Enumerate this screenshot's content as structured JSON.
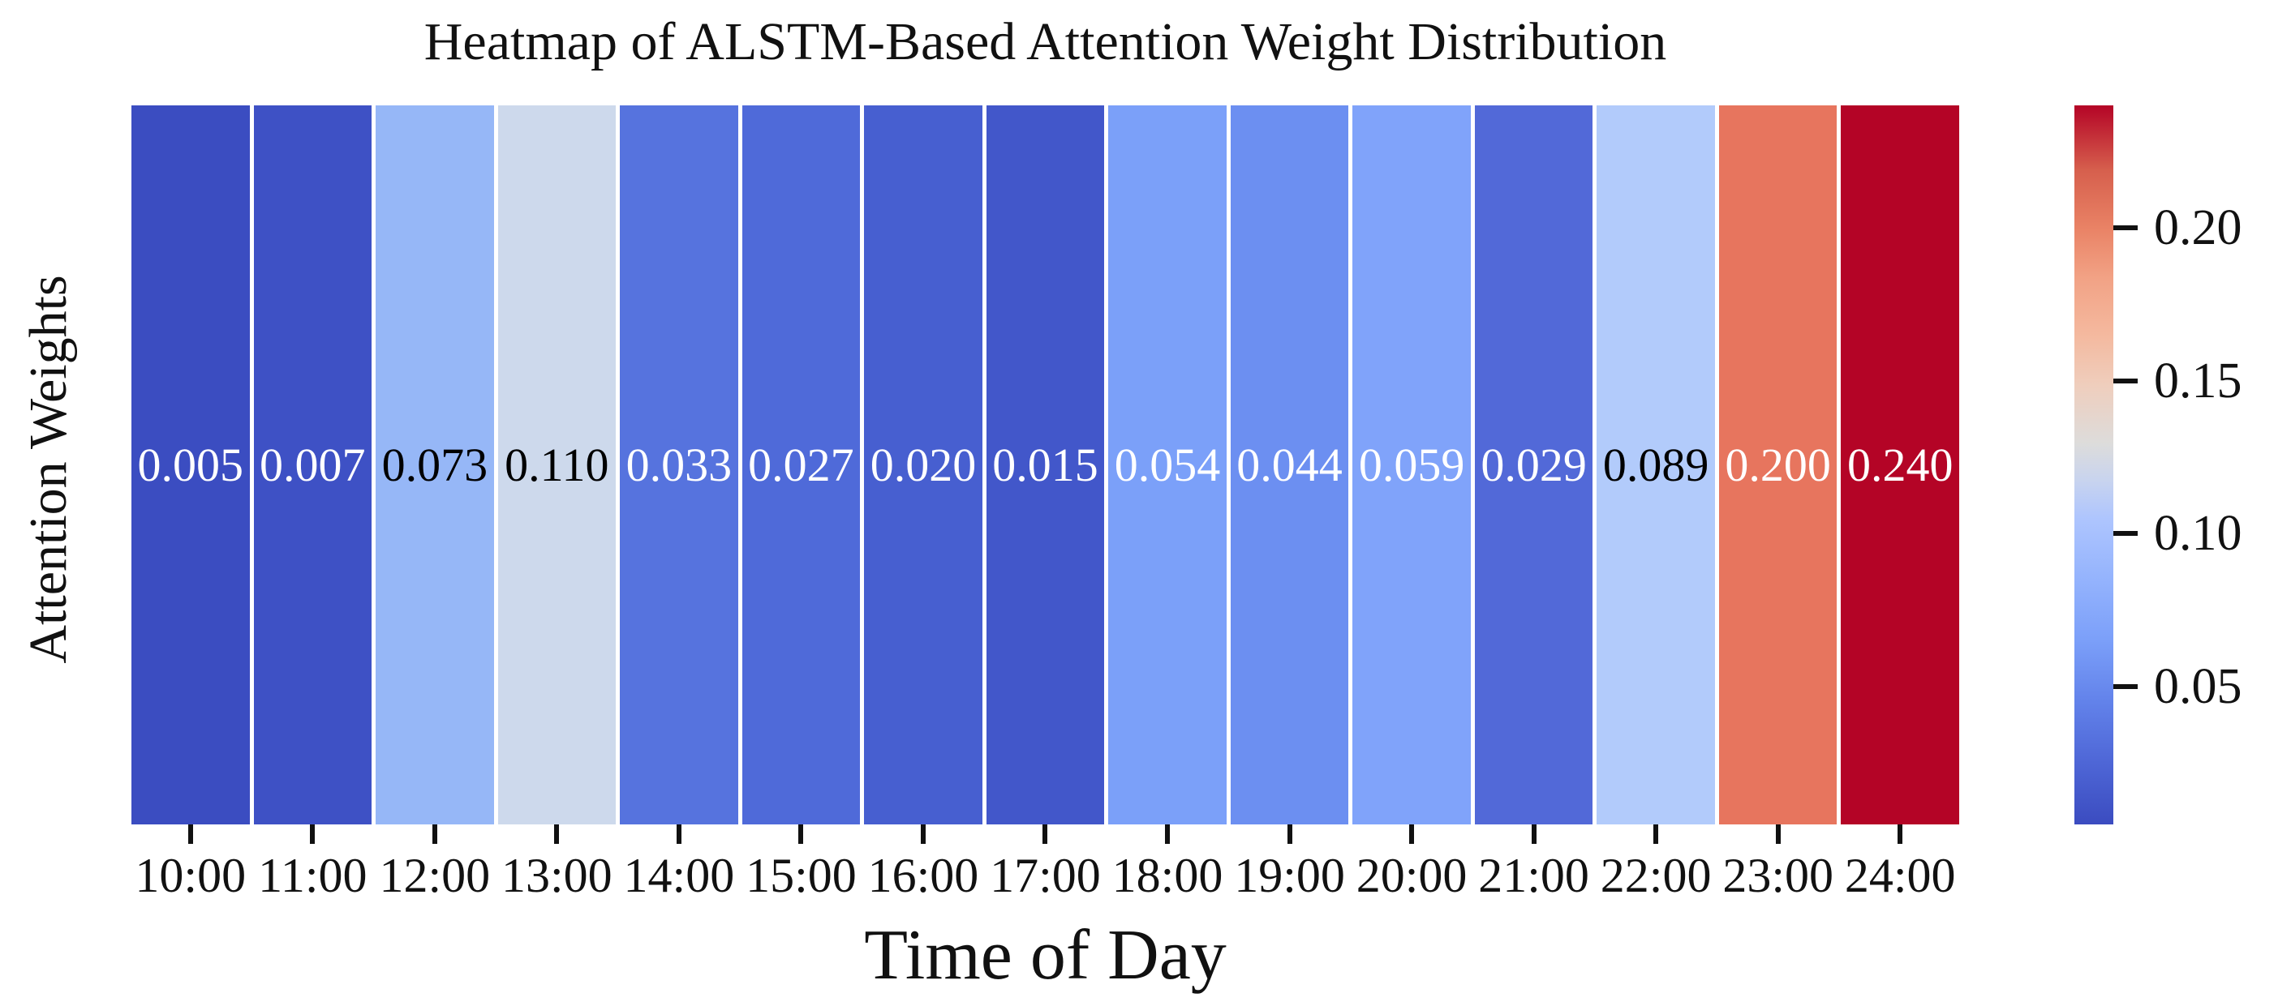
{
  "chart_data": {
    "type": "heatmap",
    "title": "Heatmap of ALSTM-Based Attention Weight Distribution",
    "xlabel": "Time of Day",
    "ylabel": "Attention Weights",
    "rows": 1,
    "categories": [
      "10:00",
      "11:00",
      "12:00",
      "13:00",
      "14:00",
      "15:00",
      "16:00",
      "17:00",
      "18:00",
      "19:00",
      "20:00",
      "21:00",
      "22:00",
      "23:00",
      "24:00"
    ],
    "values": [
      0.005,
      0.007,
      0.073,
      0.11,
      0.033,
      0.027,
      0.02,
      0.015,
      0.054,
      0.044,
      0.059,
      0.029,
      0.089,
      0.2,
      0.24
    ],
    "value_format": "0.3f",
    "annotations_shown": true,
    "colormap": "coolwarm",
    "vmin": 0.005,
    "vmax": 0.24,
    "grid": false,
    "legend": "colorbar-right",
    "cells": [
      {
        "time": "10:00",
        "label": "0.005",
        "value": 0.005,
        "fill": "#3B4DC1",
        "text_color": "#FFFFFF"
      },
      {
        "time": "11:00",
        "label": "0.007",
        "value": 0.007,
        "fill": "#3E51C5",
        "text_color": "#FFFFFF"
      },
      {
        "time": "12:00",
        "label": "0.073",
        "value": 0.073,
        "fill": "#96B7F7",
        "text_color": "#000000"
      },
      {
        "time": "13:00",
        "label": "0.110",
        "value": 0.11,
        "fill": "#CDD9EC",
        "text_color": "#000000"
      },
      {
        "time": "14:00",
        "label": "0.033",
        "value": 0.033,
        "fill": "#5673DE",
        "text_color": "#FFFFFF"
      },
      {
        "time": "15:00",
        "label": "0.027",
        "value": 0.027,
        "fill": "#4F6AD9",
        "text_color": "#FFFFFF"
      },
      {
        "time": "16:00",
        "label": "0.020",
        "value": 0.02,
        "fill": "#475FD0",
        "text_color": "#FFFFFF"
      },
      {
        "time": "17:00",
        "label": "0.015",
        "value": 0.015,
        "fill": "#4257CA",
        "text_color": "#FFFFFF"
      },
      {
        "time": "18:00",
        "label": "0.054",
        "value": 0.054,
        "fill": "#7BA0F9",
        "text_color": "#FFFFFF"
      },
      {
        "time": "19:00",
        "label": "0.044",
        "value": 0.044,
        "fill": "#6C8FF1",
        "text_color": "#FFFFFF"
      },
      {
        "time": "20:00",
        "label": "0.059",
        "value": 0.059,
        "fill": "#80A3FA",
        "text_color": "#FFFFFF"
      },
      {
        "time": "21:00",
        "label": "0.029",
        "value": 0.029,
        "fill": "#5269D8",
        "text_color": "#FFFFFF"
      },
      {
        "time": "22:00",
        "label": "0.089",
        "value": 0.089,
        "fill": "#B2CBFB",
        "text_color": "#000000"
      },
      {
        "time": "23:00",
        "label": "0.200",
        "value": 0.2,
        "fill": "#E7755E",
        "text_color": "#FFFFFF"
      },
      {
        "time": "24:00",
        "label": "0.240",
        "value": 0.24,
        "fill": "#B40426",
        "text_color": "#FFFFFF"
      }
    ],
    "colorbar": {
      "ticks": [
        {
          "value": 0.2,
          "label": "0.20"
        },
        {
          "value": 0.15,
          "label": "0.15"
        },
        {
          "value": 0.1,
          "label": "0.10"
        },
        {
          "value": 0.05,
          "label": "0.05"
        }
      ],
      "color_min": "#3B4CC0",
      "color_mid": "#DDDCDB",
      "color_max": "#B40426"
    }
  }
}
